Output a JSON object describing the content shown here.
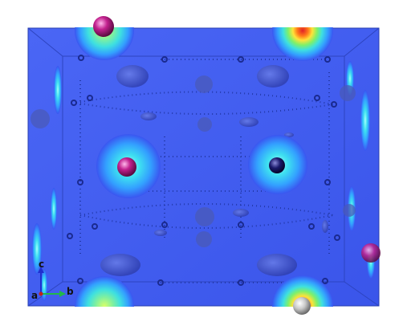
{
  "scene": {
    "kind": "crystal-structure electron-density isosurface",
    "background_color": "#ffffff",
    "cell_face_color": "#3f5cf0",
    "cell_edge_color": "#2a3fb0"
  },
  "axes": {
    "c_label": "c",
    "a_label": "a",
    "b_label": "b",
    "c_color": "#1f2fd0",
    "b_color": "#21b84a",
    "a_color": "#c02020"
  },
  "atoms": {
    "magenta_color": "#c2218e",
    "dark_blue_color": "#1a1a6a",
    "grey_color": "#d8d8d8",
    "purple_color": "#8a2570"
  },
  "density_colors": [
    "#3a55f0",
    "#33a0ff",
    "#3ee0e0",
    "#7ef06a",
    "#ffe23a",
    "#ff7a1a",
    "#e0202a"
  ]
}
